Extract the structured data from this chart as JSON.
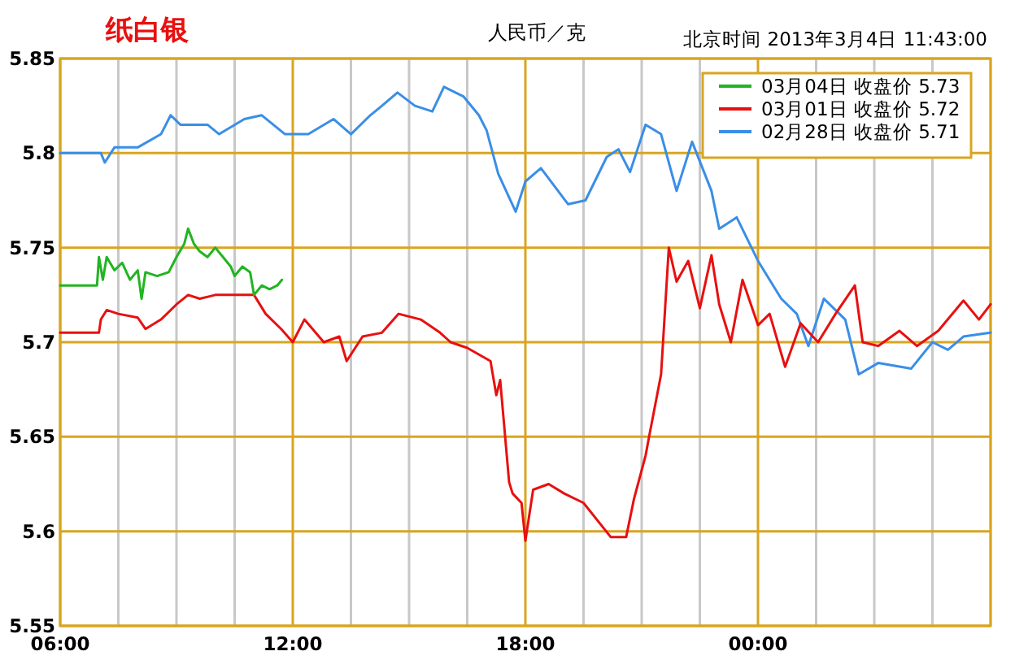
{
  "chart_data": {
    "type": "line",
    "title": "纸白银",
    "subtitle": "人民币／克",
    "annotations": [
      "北京时间 2013年3月4日 11:43:00"
    ],
    "xlim": [
      6,
      30
    ],
    "xticks": [
      {
        "value": 6,
        "label": "06:00"
      },
      {
        "value": 7.5,
        "label": null
      },
      {
        "value": 9,
        "label": null
      },
      {
        "value": 10.5,
        "label": null
      },
      {
        "value": 12,
        "label": "12:00"
      },
      {
        "value": 13.5,
        "label": null
      },
      {
        "value": 15,
        "label": null
      },
      {
        "value": 16.5,
        "label": null
      },
      {
        "value": 18,
        "label": "18:00"
      },
      {
        "value": 19.5,
        "label": null
      },
      {
        "value": 21,
        "label": null
      },
      {
        "value": 22.5,
        "label": null
      },
      {
        "value": 24,
        "label": "00:00"
      },
      {
        "value": 25.5,
        "label": null
      },
      {
        "value": 27,
        "label": null
      },
      {
        "value": 28.5,
        "label": null
      },
      {
        "value": 30,
        "label": null
      }
    ],
    "ylim": [
      5.55,
      5.85
    ],
    "yticks": [
      5.55,
      5.6,
      5.65,
      5.7,
      5.75,
      5.8,
      5.85
    ],
    "grid": true,
    "legend": "top right",
    "series": [
      {
        "name": "03月04日 收盘价 5.73",
        "color": "#22b422",
        "x": [
          6.0,
          6.95,
          7.0,
          7.1,
          7.2,
          7.4,
          7.6,
          7.8,
          8.0,
          8.1,
          8.2,
          8.5,
          8.8,
          9.0,
          9.2,
          9.3,
          9.45,
          9.6,
          9.8,
          10.0,
          10.2,
          10.4,
          10.5,
          10.7,
          10.9,
          11.0,
          11.2,
          11.4,
          11.6,
          11.72
        ],
        "values": [
          5.73,
          5.73,
          5.745,
          5.733,
          5.745,
          5.738,
          5.742,
          5.733,
          5.738,
          5.723,
          5.737,
          5.735,
          5.737,
          5.745,
          5.752,
          5.76,
          5.752,
          5.748,
          5.745,
          5.75,
          5.745,
          5.74,
          5.735,
          5.74,
          5.737,
          5.725,
          5.73,
          5.728,
          5.73,
          5.733
        ]
      },
      {
        "name": "03月01日 收盘价 5.72",
        "color": "#e81010",
        "x": [
          6.0,
          7.0,
          7.05,
          7.2,
          7.5,
          8.0,
          8.2,
          8.6,
          9.0,
          9.3,
          9.6,
          10.0,
          10.5,
          11.0,
          11.3,
          11.7,
          12.0,
          12.3,
          12.8,
          13.2,
          13.39,
          13.8,
          14.3,
          14.73,
          15.3,
          15.8,
          16.07,
          16.5,
          17.1,
          17.25,
          17.35,
          17.58,
          17.67,
          17.9,
          18.0,
          18.2,
          18.6,
          19.0,
          19.5,
          20.2,
          20.6,
          20.8,
          21.1,
          21.2,
          21.5,
          21.7,
          21.9,
          22.2,
          22.5,
          22.8,
          23.0,
          23.3,
          23.6,
          24.0,
          24.3,
          24.7,
          25.1,
          25.55,
          26.0,
          26.5,
          26.7,
          27.1,
          27.65,
          28.1,
          28.65,
          29.3,
          29.7,
          30.0
        ],
        "values": [
          5.705,
          5.705,
          5.712,
          5.717,
          5.715,
          5.713,
          5.707,
          5.712,
          5.72,
          5.725,
          5.723,
          5.725,
          5.725,
          5.725,
          5.715,
          5.707,
          5.7,
          5.712,
          5.7,
          5.703,
          5.69,
          5.703,
          5.705,
          5.715,
          5.712,
          5.705,
          5.7,
          5.697,
          5.69,
          5.672,
          5.68,
          5.626,
          5.62,
          5.615,
          5.595,
          5.622,
          5.625,
          5.62,
          5.615,
          5.597,
          5.597,
          5.617,
          5.64,
          5.651,
          5.683,
          5.75,
          5.732,
          5.743,
          5.718,
          5.746,
          5.72,
          5.7,
          5.733,
          5.709,
          5.715,
          5.687,
          5.71,
          5.7,
          5.715,
          5.73,
          5.7,
          5.698,
          5.706,
          5.698,
          5.706,
          5.722,
          5.712,
          5.72
        ]
      },
      {
        "name": "02月28日 收盘价 5.71",
        "color": "#3a8ee6",
        "x": [
          6.0,
          7.05,
          7.15,
          7.4,
          8.0,
          8.6,
          8.85,
          9.1,
          9.8,
          10.1,
          10.75,
          11.2,
          11.8,
          12.4,
          13.05,
          13.5,
          14.0,
          14.3,
          14.7,
          15.15,
          15.6,
          15.9,
          16.4,
          16.8,
          17.0,
          17.3,
          17.75,
          18.0,
          18.4,
          19.1,
          19.55,
          20.1,
          20.4,
          20.7,
          21.1,
          21.5,
          21.9,
          22.3,
          22.8,
          23.0,
          23.45,
          24.0,
          24.6,
          25.0,
          25.3,
          25.7,
          26.25,
          26.6,
          27.1,
          27.95,
          28.5,
          28.9,
          29.3,
          30.0
        ],
        "values": [
          5.8,
          5.8,
          5.795,
          5.803,
          5.803,
          5.81,
          5.82,
          5.815,
          5.815,
          5.81,
          5.818,
          5.82,
          5.81,
          5.81,
          5.818,
          5.81,
          5.82,
          5.825,
          5.832,
          5.825,
          5.822,
          5.835,
          5.83,
          5.82,
          5.812,
          5.789,
          5.769,
          5.785,
          5.792,
          5.773,
          5.775,
          5.798,
          5.802,
          5.79,
          5.815,
          5.81,
          5.78,
          5.806,
          5.78,
          5.76,
          5.766,
          5.743,
          5.723,
          5.715,
          5.698,
          5.723,
          5.712,
          5.683,
          5.689,
          5.686,
          5.7,
          5.696,
          5.703,
          5.705
        ]
      }
    ]
  }
}
